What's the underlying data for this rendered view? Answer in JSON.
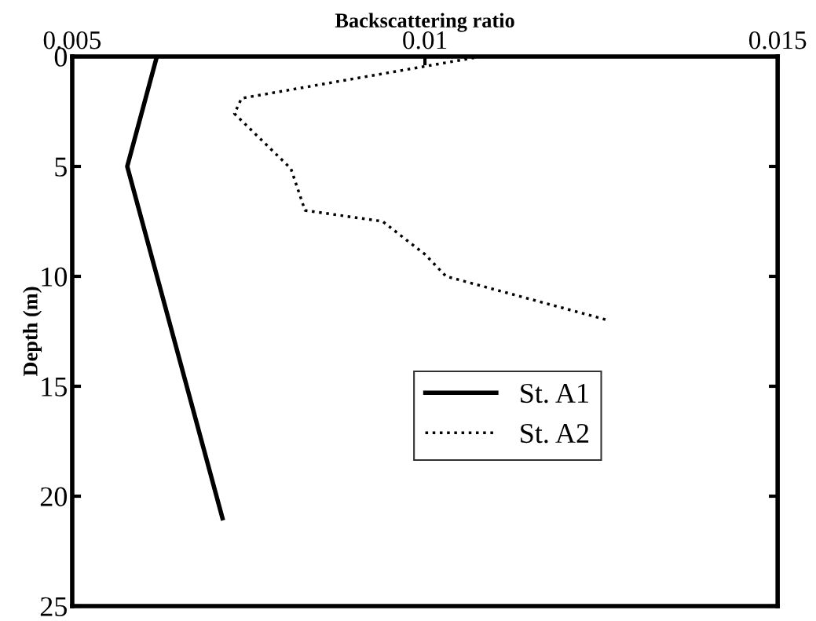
{
  "chart_data": {
    "type": "line",
    "xlabel": "Backscattering ratio",
    "ylabel": "Depth (m)",
    "xlim": [
      0.005,
      0.015
    ],
    "xticks": [
      0.005,
      0.01,
      0.015
    ],
    "ylim": [
      25,
      0
    ],
    "yticks": [
      0,
      5,
      10,
      15,
      20,
      25
    ],
    "legend": "bottom right",
    "grid": false,
    "series": [
      {
        "name": "St. A1",
        "color": "#000000",
        "line_style": "solid",
        "x": [
          0.0062,
          0.00578,
          0.00713
        ],
        "values": [
          0,
          5,
          21
        ]
      },
      {
        "name": "St. A2",
        "color": "#000000",
        "line_style": "dotted",
        "x": [
          0.0108,
          0.0074,
          0.0073,
          0.0081,
          0.0083,
          0.0094,
          0.01,
          0.0103,
          0.0126
        ],
        "values": [
          0,
          1.9,
          2.6,
          5.1,
          7.0,
          7.5,
          9.0,
          10.0,
          12.0
        ]
      }
    ]
  }
}
